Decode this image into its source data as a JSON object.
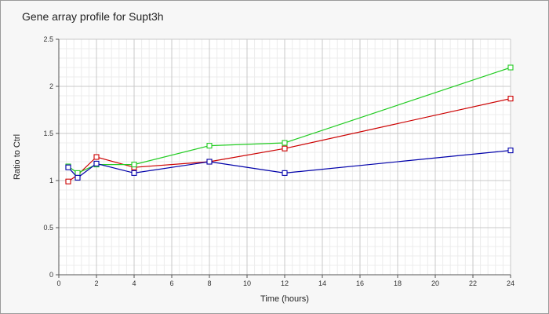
{
  "chart_data": {
    "type": "line",
    "title": "Gene array profile for Supt3h",
    "xlabel": "Time (hours)",
    "ylabel": "Ratio to Ctrl",
    "xlim": [
      0,
      24
    ],
    "ylim": [
      0,
      2.5
    ],
    "x_ticks": [
      "0",
      "2",
      "4",
      "6",
      "8",
      "10",
      "12",
      "14",
      "16",
      "18",
      "20",
      "22",
      "24"
    ],
    "y_ticks": [
      "0",
      "0.5",
      "1",
      "1.5",
      "2",
      "2.5"
    ],
    "grid": true,
    "series": [
      {
        "color": "#cc0000",
        "x": [
          0.5,
          1,
          2,
          4,
          8,
          12,
          24
        ],
        "y": [
          0.99,
          1.06,
          1.25,
          1.14,
          1.2,
          1.34,
          1.87
        ]
      },
      {
        "color": "#22cc22",
        "x": [
          0.5,
          1,
          2,
          4,
          8,
          12,
          24
        ],
        "y": [
          1.15,
          1.08,
          1.17,
          1.17,
          1.37,
          1.4,
          2.2
        ]
      },
      {
        "color": "#0000aa",
        "x": [
          0.5,
          1,
          2,
          4,
          8,
          12,
          24
        ],
        "y": [
          1.14,
          1.03,
          1.18,
          1.08,
          1.2,
          1.08,
          1.32
        ]
      }
    ]
  }
}
